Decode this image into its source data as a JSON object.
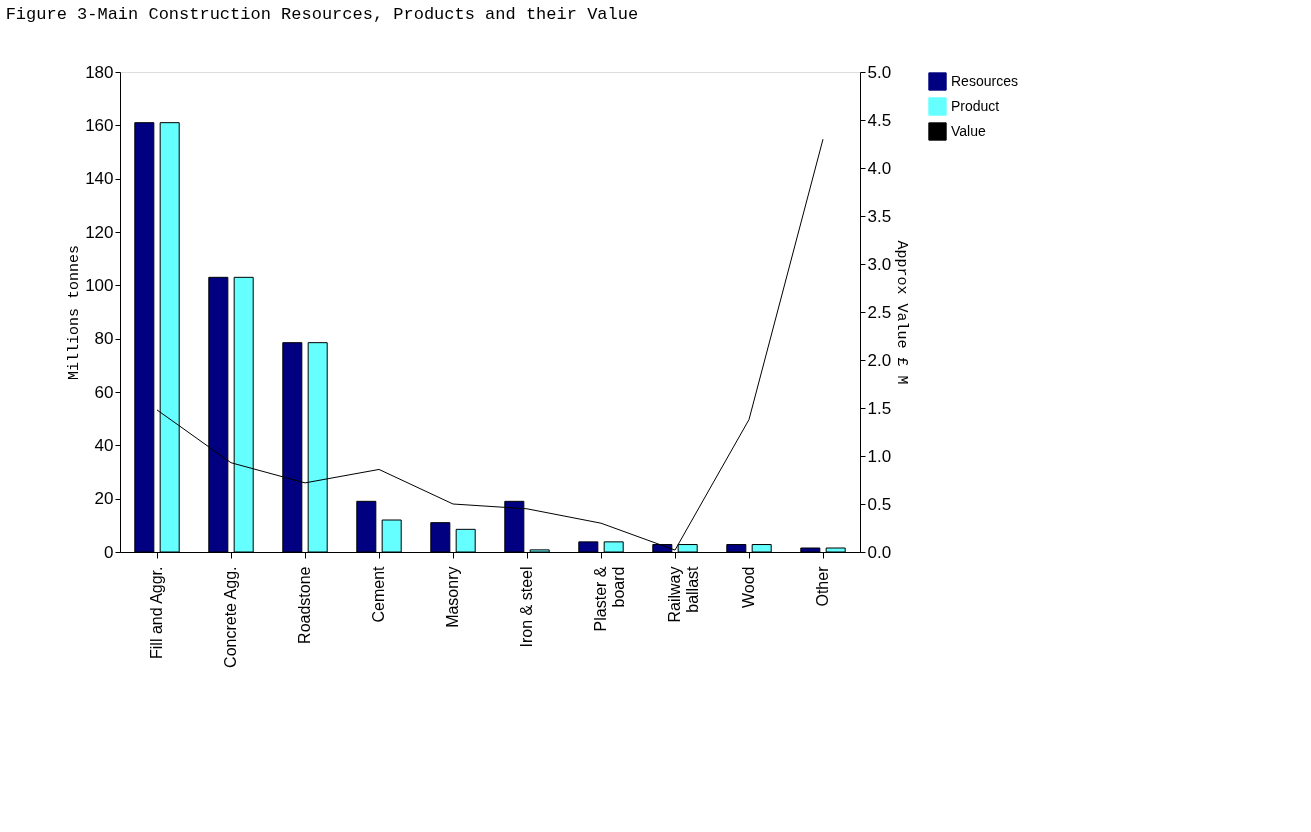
{
  "chart_data": {
    "type": "bar",
    "title": "Figure 3-Main Construction Resources, Products and their Value",
    "categories": [
      "Fill and Aggr.",
      "Concrete Agg.",
      "Roadstone",
      "Cement",
      "Masonry",
      "Iron & steel",
      "Plaster &\nboard",
      "Railway\nballast",
      "Wood",
      "Other"
    ],
    "series": [
      {
        "name": "Resources",
        "color": "#000080",
        "values": [
          161,
          103,
          78.5,
          19,
          11,
          19,
          3.8,
          2.8,
          2.8,
          1.5
        ]
      },
      {
        "name": "Product",
        "color": "#66ffff",
        "values": [
          161,
          103,
          78.5,
          12,
          8.5,
          0.8,
          3.8,
          2.8,
          2.8,
          1.5
        ]
      },
      {
        "name": "Value",
        "type": "line",
        "axis": "y2",
        "color": "#000000",
        "values": [
          1.48,
          0.93,
          0.72,
          0.86,
          0.5,
          0.45,
          0.3,
          0.02,
          1.38,
          4.3
        ]
      }
    ],
    "ylabel": "Millions tonnes",
    "y2label": "Approx Value £ M",
    "ylim": [
      0,
      180
    ],
    "yticks": [
      0,
      20,
      40,
      60,
      80,
      100,
      120,
      140,
      160,
      180
    ],
    "y2lim": [
      0,
      5
    ],
    "y2ticks": [
      {
        "value": 0,
        "label": "0.0"
      },
      {
        "value": 0.5,
        "label": "0.5"
      },
      {
        "value": 1,
        "label": "1.0"
      },
      {
        "value": 1.5,
        "label": "1.5"
      },
      {
        "value": 2,
        "label": "2.0"
      },
      {
        "value": 2.5,
        "label": "2.5"
      },
      {
        "value": 3,
        "label": "3.0"
      },
      {
        "value": 3.5,
        "label": "3.5"
      },
      {
        "value": 4,
        "label": "4.0"
      },
      {
        "value": 4.5,
        "label": "4.5"
      },
      {
        "value": 5,
        "label": "5.0"
      }
    ],
    "legend": "right",
    "grid": false,
    "marker": "none",
    "line_style": "solid"
  }
}
